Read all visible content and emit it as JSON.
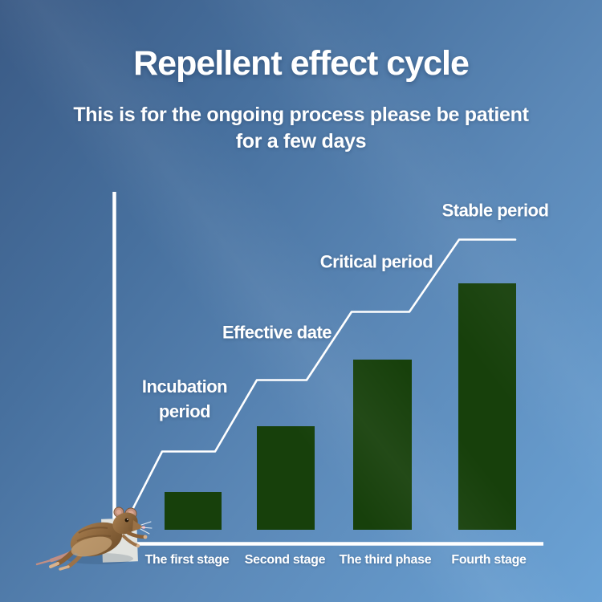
{
  "header": {
    "title": "Repellent effect cycle",
    "subtitle_line1": "This is for the ongoing process please be patient",
    "subtitle_line2": "for a few days"
  },
  "colors": {
    "background_top_left": "#3a5a85",
    "background_bottom_right": "#6ba3d6",
    "bar_fill": "#17400b",
    "axis_line": "#ffffff",
    "step_line": "#ffffff",
    "text": "#ffffff"
  },
  "chart_data": {
    "type": "bar",
    "title": "Repellent effect cycle",
    "xlabel": "",
    "ylabel": "",
    "categories": [
      "The first stage",
      "Second stage",
      "The third phase",
      "Fourth stage"
    ],
    "values": [
      47,
      129,
      212,
      307
    ],
    "value_note": "relative bar heights, no numeric axis shown",
    "step_line_levels": [
      115,
      204,
      289,
      379
    ],
    "annotations": [
      {
        "label": "Incubation period",
        "lines": [
          "Incubation",
          "period"
        ]
      },
      {
        "label": "Effective date",
        "lines": [
          "Effective date"
        ]
      },
      {
        "label": "Critical period",
        "lines": [
          "Critical period"
        ]
      },
      {
        "label": "Stable period",
        "lines": [
          "Stable period"
        ]
      }
    ],
    "legend": null,
    "grid": false
  },
  "decoration": {
    "mouse_image_alt": "jumping brown mouse over paper scrap"
  }
}
